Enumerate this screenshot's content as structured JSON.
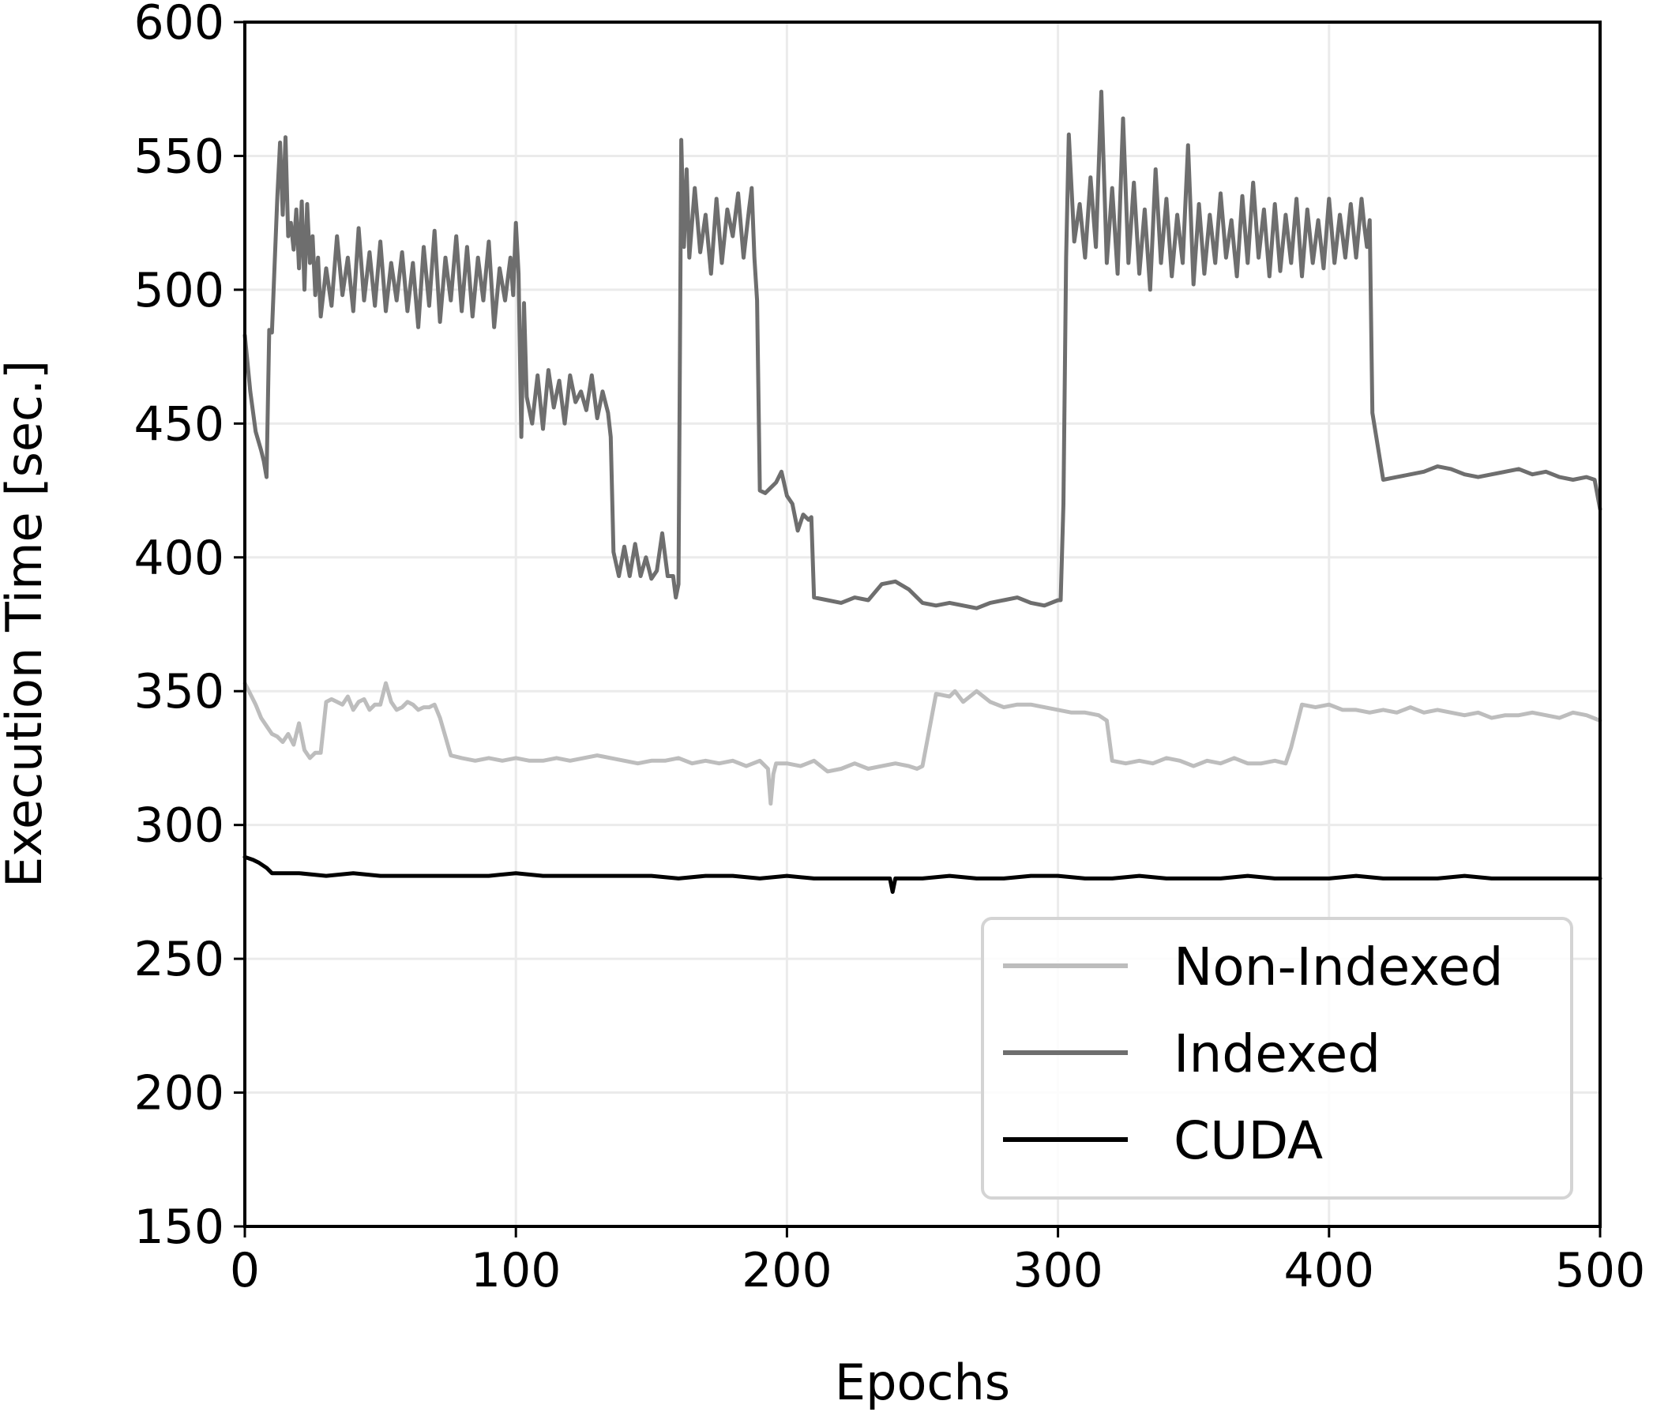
{
  "chart_data": {
    "type": "line",
    "title": "",
    "xlabel": "Epochs",
    "ylabel": "Execution Time [sec.]",
    "xlim": [
      0,
      500
    ],
    "ylim": [
      150,
      600
    ],
    "xticks": [
      0,
      100,
      200,
      300,
      400,
      500
    ],
    "yticks": [
      150,
      200,
      250,
      300,
      350,
      400,
      450,
      500,
      550,
      600
    ],
    "grid": true,
    "legend_position": "lower-right",
    "series": [
      {
        "name": "Non-Indexed",
        "color": "#bdbdbd",
        "x": [
          0,
          2,
          4,
          6,
          8,
          10,
          12,
          14,
          16,
          18,
          20,
          22,
          24,
          26,
          28,
          30,
          32,
          34,
          36,
          38,
          40,
          42,
          44,
          46,
          48,
          50,
          52,
          54,
          56,
          58,
          60,
          62,
          64,
          66,
          68,
          70,
          72,
          74,
          76,
          80,
          85,
          90,
          95,
          100,
          105,
          110,
          115,
          120,
          125,
          130,
          135,
          140,
          145,
          150,
          155,
          160,
          165,
          170,
          175,
          180,
          185,
          190,
          193,
          194,
          195,
          196,
          200,
          205,
          210,
          215,
          220,
          225,
          230,
          235,
          240,
          245,
          248,
          250,
          255,
          260,
          262,
          265,
          270,
          275,
          280,
          285,
          290,
          295,
          300,
          305,
          310,
          315,
          318,
          320,
          325,
          330,
          335,
          340,
          345,
          350,
          355,
          360,
          365,
          370,
          375,
          380,
          384,
          386,
          390,
          395,
          400,
          405,
          410,
          415,
          420,
          425,
          430,
          435,
          440,
          445,
          450,
          455,
          460,
          465,
          470,
          475,
          480,
          485,
          490,
          495,
          500
        ],
        "values": [
          353,
          349,
          345,
          340,
          337,
          334,
          333,
          331,
          334,
          330,
          338,
          328,
          325,
          327,
          327,
          346,
          347,
          346,
          345,
          348,
          343,
          346,
          347,
          343,
          345,
          345,
          353,
          346,
          343,
          344,
          346,
          345,
          343,
          344,
          344,
          345,
          340,
          333,
          326,
          325,
          324,
          325,
          324,
          325,
          324,
          324,
          325,
          324,
          325,
          326,
          325,
          324,
          323,
          324,
          324,
          325,
          323,
          324,
          323,
          324,
          322,
          324,
          321,
          308,
          319,
          323,
          323,
          322,
          324,
          320,
          321,
          323,
          321,
          322,
          323,
          322,
          321,
          322,
          349,
          348,
          350,
          346,
          350,
          346,
          344,
          345,
          345,
          344,
          343,
          342,
          342,
          341,
          339,
          324,
          323,
          324,
          323,
          325,
          324,
          322,
          324,
          323,
          325,
          323,
          323,
          324,
          323,
          329,
          345,
          344,
          345,
          343,
          343,
          342,
          343,
          342,
          344,
          342,
          343,
          342,
          341,
          342,
          340,
          341,
          341,
          342,
          341,
          340,
          342,
          341,
          339
        ]
      },
      {
        "name": "Indexed",
        "color": "#6e6e6e",
        "x": [
          0,
          2,
          4,
          6,
          7,
          8,
          9,
          10,
          11,
          12,
          13,
          14,
          15,
          16,
          17,
          18,
          19,
          20,
          21,
          22,
          23,
          24,
          25,
          26,
          27,
          28,
          30,
          32,
          34,
          36,
          38,
          40,
          42,
          44,
          46,
          48,
          50,
          52,
          54,
          56,
          58,
          60,
          62,
          64,
          66,
          68,
          70,
          72,
          74,
          76,
          78,
          80,
          82,
          84,
          86,
          88,
          90,
          92,
          94,
          96,
          98,
          99,
          100,
          101,
          102,
          103,
          104,
          106,
          108,
          110,
          112,
          114,
          116,
          118,
          120,
          122,
          124,
          126,
          128,
          130,
          132,
          134,
          135,
          136,
          138,
          140,
          142,
          144,
          146,
          148,
          150,
          152,
          154,
          156,
          158,
          159,
          160,
          161,
          162,
          163,
          164,
          166,
          168,
          170,
          172,
          174,
          176,
          178,
          180,
          182,
          184,
          186,
          187,
          188,
          189,
          190,
          192,
          194,
          196,
          198,
          200,
          202,
          204,
          206,
          208,
          209,
          210,
          215,
          220,
          225,
          230,
          235,
          240,
          245,
          250,
          255,
          260,
          265,
          270,
          275,
          280,
          285,
          290,
          295,
          300,
          301,
          302,
          303,
          304,
          306,
          308,
          310,
          312,
          314,
          316,
          318,
          320,
          322,
          324,
          326,
          328,
          330,
          332,
          334,
          336,
          338,
          340,
          342,
          344,
          346,
          348,
          350,
          352,
          354,
          356,
          358,
          360,
          362,
          364,
          366,
          368,
          370,
          372,
          374,
          376,
          378,
          380,
          382,
          384,
          386,
          388,
          390,
          392,
          394,
          396,
          398,
          400,
          402,
          404,
          406,
          408,
          410,
          412,
          413,
          414,
          415,
          416,
          420,
          425,
          430,
          435,
          440,
          445,
          450,
          455,
          460,
          465,
          470,
          475,
          480,
          485,
          490,
          495,
          498,
          500
        ],
        "values": [
          483,
          462,
          447,
          440,
          436,
          430,
          485,
          484,
          510,
          535,
          555,
          528,
          557,
          520,
          525,
          515,
          530,
          508,
          533,
          500,
          532,
          510,
          520,
          498,
          512,
          490,
          508,
          494,
          520,
          498,
          512,
          492,
          523,
          496,
          514,
          494,
          518,
          492,
          510,
          496,
          514,
          492,
          510,
          486,
          516,
          494,
          522,
          488,
          512,
          496,
          520,
          492,
          516,
          490,
          512,
          496,
          518,
          486,
          508,
          496,
          512,
          498,
          525,
          506,
          445,
          495,
          460,
          450,
          468,
          448,
          470,
          456,
          466,
          450,
          468,
          458,
          462,
          455,
          468,
          452,
          462,
          454,
          445,
          402,
          393,
          404,
          393,
          405,
          393,
          400,
          392,
          395,
          409,
          393,
          393,
          385,
          390,
          556,
          516,
          545,
          512,
          538,
          514,
          528,
          506,
          534,
          510,
          530,
          520,
          536,
          512,
          530,
          538,
          512,
          496,
          425,
          424,
          426,
          428,
          432,
          423,
          420,
          410,
          416,
          414,
          415,
          385,
          384,
          383,
          385,
          384,
          390,
          391,
          388,
          383,
          382,
          383,
          382,
          381,
          383,
          384,
          385,
          383,
          382,
          384,
          384,
          420,
          512,
          558,
          518,
          532,
          512,
          542,
          516,
          574,
          510,
          538,
          506,
          564,
          510,
          540,
          506,
          530,
          500,
          545,
          510,
          534,
          505,
          528,
          510,
          554,
          502,
          532,
          506,
          528,
          510,
          536,
          512,
          526,
          505,
          535,
          510,
          540,
          512,
          530,
          505,
          532,
          507,
          528,
          510,
          534,
          505,
          530,
          510,
          526,
          508,
          534,
          510,
          528,
          512,
          532,
          512,
          534,
          524,
          516,
          526,
          454,
          429,
          430,
          431,
          432,
          434,
          433,
          431,
          430,
          431,
          432,
          433,
          431,
          432,
          430,
          429,
          430,
          429,
          418
        ]
      },
      {
        "name": "CUDA",
        "color": "#000000",
        "x": [
          0,
          3,
          5,
          8,
          10,
          15,
          20,
          30,
          40,
          50,
          60,
          70,
          80,
          90,
          100,
          110,
          120,
          130,
          140,
          150,
          160,
          170,
          180,
          190,
          200,
          210,
          220,
          230,
          238,
          239,
          240,
          241,
          242,
          250,
          260,
          270,
          280,
          290,
          300,
          310,
          320,
          330,
          340,
          350,
          360,
          370,
          380,
          390,
          400,
          410,
          420,
          430,
          440,
          450,
          460,
          470,
          480,
          490,
          500
        ],
        "values": [
          288,
          287,
          286,
          284,
          282,
          282,
          282,
          281,
          282,
          281,
          281,
          281,
          281,
          281,
          282,
          281,
          281,
          281,
          281,
          281,
          280,
          281,
          281,
          280,
          281,
          280,
          280,
          280,
          280,
          275,
          280,
          280,
          280,
          280,
          281,
          280,
          280,
          281,
          281,
          280,
          280,
          281,
          280,
          280,
          280,
          281,
          280,
          280,
          280,
          281,
          280,
          280,
          280,
          281,
          280,
          280,
          280,
          280,
          280
        ]
      }
    ]
  }
}
